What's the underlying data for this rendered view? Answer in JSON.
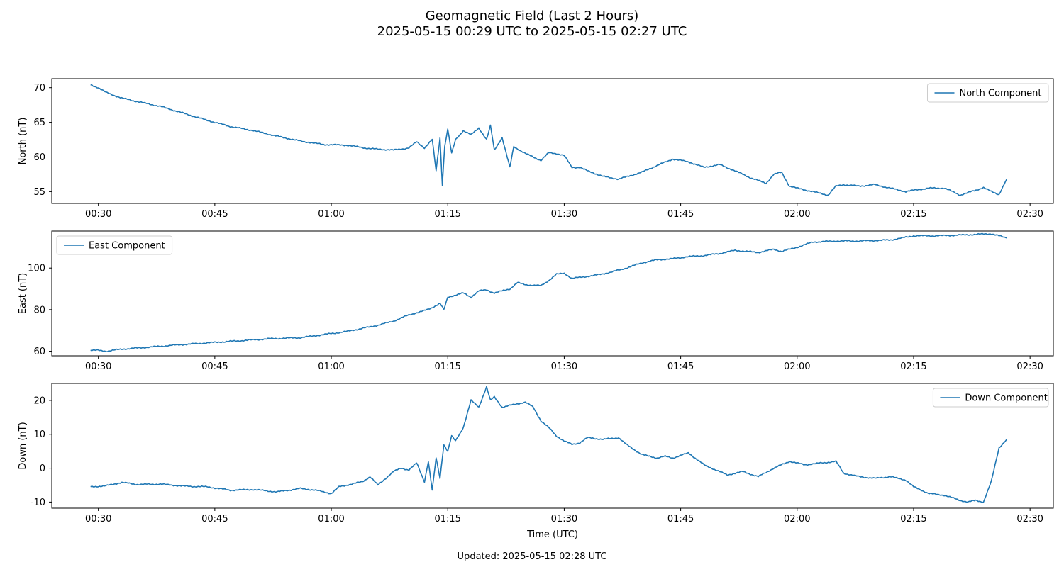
{
  "figure": {
    "title_line1": "Geomagnetic Field (Last 2 Hours)",
    "title_line2": "2025-05-15 00:29 UTC to 2025-05-15 02:27 UTC",
    "footer": "Updated: 2025-05-15 02:28 UTC",
    "line_color": "#1f77b4"
  },
  "chart_data": [
    {
      "type": "line",
      "ylabel": "North (nT)",
      "xlabel": "",
      "legend": "top-right",
      "xlim": [
        "00:24",
        "02:33"
      ],
      "ylim": [
        53.3,
        71.3
      ],
      "xticks": [
        "00:30",
        "00:45",
        "01:00",
        "01:15",
        "01:30",
        "01:45",
        "02:00",
        "02:15",
        "02:30"
      ],
      "yticks": [
        55,
        60,
        65,
        70
      ],
      "series": [
        {
          "name": "North Component",
          "x": [
            "00:29",
            "00:30",
            "00:31",
            "00:33",
            "00:35",
            "00:38",
            "00:41",
            "00:44",
            "00:47",
            "00:50",
            "00:53",
            "00:56",
            "00:59",
            "01:02",
            "01:05",
            "01:08",
            "01:10",
            "01:11",
            "01:12",
            "01:13",
            "01:13.5",
            "01:14",
            "01:14.3",
            "01:14.6",
            "01:15",
            "01:15.5",
            "01:16",
            "01:17",
            "01:18",
            "01:19",
            "01:20",
            "01:20.5",
            "01:21",
            "01:22",
            "01:23",
            "01:23.5",
            "01:25",
            "01:27",
            "01:28",
            "01:29",
            "01:30",
            "01:31",
            "01:32",
            "01:33",
            "01:35",
            "01:37",
            "01:40",
            "01:42",
            "01:44",
            "01:46",
            "01:48",
            "01:50",
            "01:52",
            "01:54",
            "01:56",
            "01:57",
            "01:58",
            "01:59",
            "02:00",
            "02:02",
            "02:04",
            "02:05",
            "02:06",
            "02:08",
            "02:10",
            "02:12",
            "02:14",
            "02:15",
            "02:17",
            "02:19",
            "02:21",
            "02:23",
            "02:24",
            "02:25",
            "02:26",
            "02:27"
          ],
          "values": [
            70.4,
            70.0,
            69.3,
            68.5,
            68.0,
            67.3,
            66.3,
            65.3,
            64.4,
            63.8,
            63.0,
            62.3,
            61.8,
            61.7,
            61.2,
            61.0,
            61.3,
            62.2,
            61.3,
            62.5,
            58.0,
            62.8,
            56.0,
            61.5,
            64.0,
            60.5,
            62.5,
            63.8,
            63.2,
            64.2,
            62.5,
            64.5,
            61.0,
            62.8,
            58.5,
            61.5,
            60.5,
            59.5,
            60.6,
            60.5,
            60.2,
            58.5,
            58.5,
            58.0,
            57.2,
            56.8,
            57.8,
            58.8,
            59.7,
            59.3,
            58.5,
            58.9,
            58.0,
            57.0,
            56.2,
            57.5,
            57.8,
            55.8,
            55.5,
            55.0,
            54.5,
            55.8,
            56.0,
            55.8,
            56.0,
            55.5,
            55.0,
            55.2,
            55.5,
            55.5,
            54.5,
            55.2,
            55.6,
            55.0,
            54.6,
            56.8
          ]
        }
      ]
    },
    {
      "type": "line",
      "ylabel": "East (nT)",
      "xlabel": "",
      "legend": "top-left",
      "xlim": [
        "00:24",
        "02:33"
      ],
      "ylim": [
        57.8,
        117.8
      ],
      "xticks": [
        "00:30",
        "00:45",
        "01:00",
        "01:15",
        "01:30",
        "01:45",
        "02:00",
        "02:15",
        "02:30"
      ],
      "yticks": [
        60,
        80,
        100
      ],
      "series": [
        {
          "name": "East Component",
          "x": [
            "00:29",
            "00:30",
            "00:31",
            "00:33",
            "00:36",
            "00:40",
            "00:44",
            "00:48",
            "00:52",
            "00:56",
            "01:00",
            "01:02",
            "01:04",
            "01:06",
            "01:08",
            "01:10",
            "01:12",
            "01:13",
            "01:14",
            "01:14.5",
            "01:15",
            "01:16",
            "01:17",
            "01:18",
            "01:19",
            "01:20",
            "01:21",
            "01:22",
            "01:23",
            "01:24",
            "01:25",
            "01:27",
            "01:28",
            "01:29",
            "01:30",
            "01:31",
            "01:34",
            "01:36",
            "01:38",
            "01:40",
            "01:42",
            "01:44",
            "01:46",
            "01:48",
            "01:50",
            "01:52",
            "01:55",
            "01:57",
            "01:58",
            "02:00",
            "02:02",
            "02:05",
            "02:08",
            "02:12",
            "02:15",
            "02:18",
            "02:22",
            "02:25",
            "02:27"
          ],
          "values": [
            60.5,
            60.4,
            60.0,
            61.0,
            61.8,
            63.0,
            64.0,
            65.0,
            66.0,
            66.5,
            68.5,
            69.5,
            71.0,
            72.5,
            74.5,
            77.5,
            79.5,
            81.0,
            83.0,
            80.0,
            86.0,
            87.0,
            88.0,
            86.0,
            89.0,
            89.5,
            88.0,
            89.0,
            90.0,
            93.0,
            92.0,
            91.5,
            94.0,
            97.0,
            97.5,
            95.0,
            96.5,
            98.0,
            100.0,
            102.5,
            104.0,
            104.5,
            105.5,
            106.0,
            107.0,
            108.5,
            107.5,
            109.0,
            108.0,
            110.0,
            112.5,
            113.0,
            113.0,
            113.5,
            115.5,
            115.5,
            116.0,
            116.5,
            114.5
          ]
        }
      ]
    },
    {
      "type": "line",
      "ylabel": "Down (nT)",
      "xlabel": "Time (UTC)",
      "legend": "top-right",
      "xlim": [
        "00:24",
        "02:33"
      ],
      "ylim": [
        -11.8,
        25.0
      ],
      "xticks": [
        "00:30",
        "00:45",
        "01:00",
        "01:15",
        "01:30",
        "01:45",
        "02:00",
        "02:15",
        "02:30"
      ],
      "yticks": [
        -10,
        0,
        10,
        20
      ],
      "series": [
        {
          "name": "Down Component",
          "x": [
            "00:29",
            "00:31",
            "00:33",
            "00:35",
            "00:38",
            "00:41",
            "00:44",
            "00:47",
            "00:50",
            "00:53",
            "00:56",
            "00:58",
            "01:00",
            "01:01",
            "01:03",
            "01:04",
            "01:05",
            "01:06",
            "01:07",
            "01:08",
            "01:09",
            "01:10",
            "01:11",
            "01:12",
            "01:12.5",
            "01:13",
            "01:13.5",
            "01:14",
            "01:14.5",
            "01:15",
            "01:15.5",
            "01:16",
            "01:17",
            "01:18",
            "01:19",
            "01:20",
            "01:20.5",
            "01:21",
            "01:22",
            "01:23",
            "01:24",
            "01:25",
            "01:26",
            "01:27",
            "01:28",
            "01:29",
            "01:30",
            "01:31",
            "01:32",
            "01:33",
            "01:35",
            "01:37",
            "01:38",
            "01:40",
            "01:42",
            "01:43",
            "01:44",
            "01:46",
            "01:48",
            "01:49",
            "01:51",
            "01:53",
            "01:55",
            "01:57",
            "01:59",
            "02:01",
            "02:03",
            "02:05",
            "02:06",
            "02:08",
            "02:10",
            "02:12",
            "02:14",
            "02:15",
            "02:17",
            "02:19",
            "02:21",
            "02:22",
            "02:23",
            "02:24",
            "02:25",
            "02:26",
            "02:27"
          ],
          "values": [
            -5.5,
            -5.2,
            -4.2,
            -4.8,
            -4.7,
            -5.3,
            -5.5,
            -6.5,
            -6.3,
            -7.0,
            -6.0,
            -6.5,
            -7.5,
            -5.5,
            -4.5,
            -4.0,
            -2.5,
            -5.0,
            -3.0,
            -1.0,
            0.0,
            -0.5,
            1.5,
            -4.0,
            2.0,
            -6.5,
            3.0,
            -3.0,
            7.0,
            5.0,
            9.5,
            8.0,
            12.0,
            20.0,
            18.0,
            24.0,
            20.0,
            21.0,
            18.0,
            18.5,
            19.0,
            19.5,
            18.0,
            14.0,
            12.0,
            9.5,
            8.0,
            7.0,
            7.5,
            9.0,
            8.5,
            9.0,
            7.0,
            4.0,
            3.0,
            3.5,
            3.0,
            4.5,
            1.0,
            0.0,
            -2.0,
            -1.0,
            -2.5,
            0.0,
            2.0,
            1.0,
            1.5,
            2.0,
            -1.5,
            -2.5,
            -3.0,
            -2.5,
            -3.5,
            -5.5,
            -7.5,
            -8.0,
            -9.5,
            -10.0,
            -9.5,
            -10.0,
            -4.0,
            6.0,
            8.5
          ]
        }
      ]
    }
  ]
}
